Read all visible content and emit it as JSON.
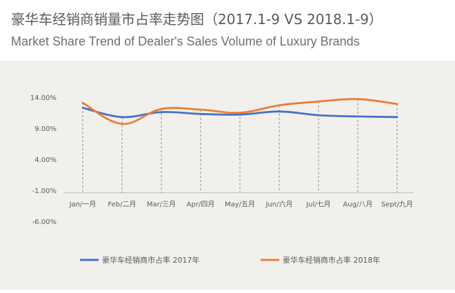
{
  "header": {
    "title_cn": "豪华车经销商销量市占率走势图（2017.1-9  VS 2018.1-9）",
    "title_en": "Market Share Trend of Dealer's Sales Volume of Luxury Brands"
  },
  "chart_data": {
    "type": "line",
    "categories": [
      "Jan/一月",
      "Feb/二月",
      "Mar/三月",
      "Apr/四月",
      "May/五月",
      "Jun/六月",
      "Jul/七月",
      "Aug/八月",
      "Sept/九月"
    ],
    "y_ticks": [
      "14.00%",
      "9.00%",
      "4.00%",
      "-1.00%",
      "-6.00%"
    ],
    "ylim": [
      -6,
      14
    ],
    "series": [
      {
        "name": "豪华车经销商市占率 2017年",
        "color": "#4472c4",
        "values": [
          12.3,
          10.8,
          11.6,
          11.3,
          11.2,
          11.7,
          11.1,
          10.9,
          10.8
        ]
      },
      {
        "name": "豪华车经销商市占率 2018年",
        "color": "#ed7d31",
        "values": [
          13.1,
          9.7,
          12.1,
          12.0,
          11.5,
          12.7,
          13.3,
          13.7,
          12.9
        ]
      }
    ],
    "grid": false,
    "legend": "bottom"
  }
}
